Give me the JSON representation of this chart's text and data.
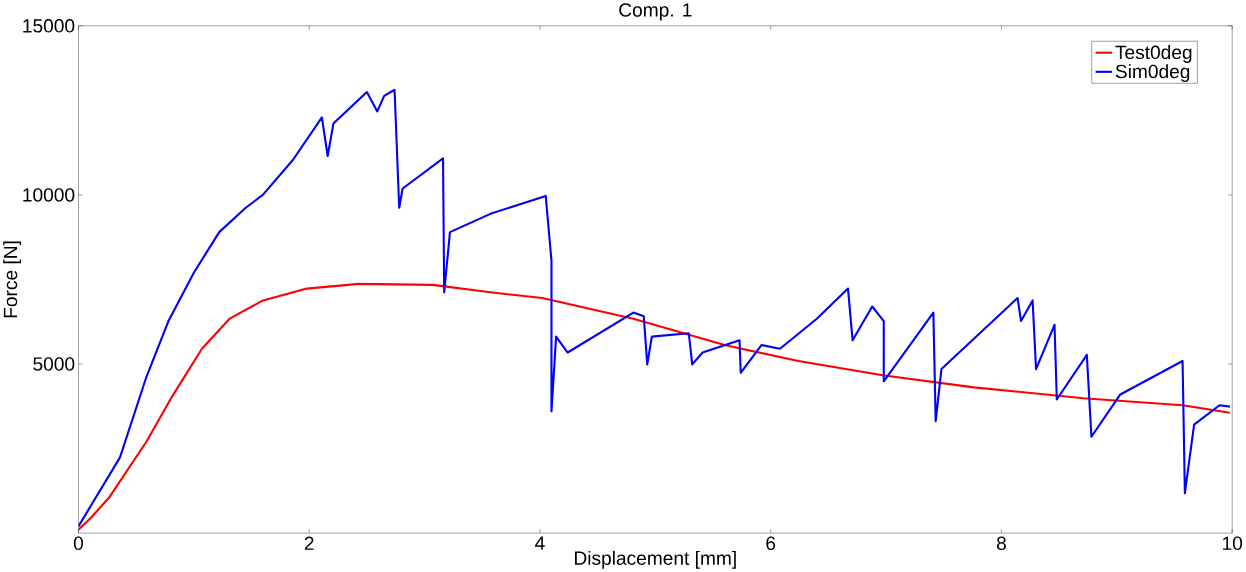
{
  "chart_data": {
    "type": "line",
    "title": "Comp. 1",
    "xlabel": "Displacement [mm]",
    "ylabel": "Force [N]",
    "xlim": [
      0,
      10
    ],
    "ylim": [
      0,
      15000
    ],
    "xticks": [
      0,
      2,
      4,
      6,
      8,
      10
    ],
    "yticks": [
      5000,
      10000,
      15000
    ],
    "legend": "top right",
    "grid": false,
    "marker": "none",
    "line_style": "solid",
    "series": [
      {
        "name": "Test0deg",
        "color": "#ff0000",
        "x": [
          0,
          0.11,
          0.27,
          0.59,
          0.81,
          1.07,
          1.31,
          1.6,
          1.98,
          2.43,
          3.07,
          3.57,
          4.02,
          4.81,
          5.6,
          6.24,
          6.97,
          7.76,
          8.71,
          9.57,
          9.98
        ],
        "values": [
          100,
          460,
          1070,
          2710,
          4030,
          5450,
          6340,
          6880,
          7230,
          7370,
          7340,
          7120,
          6950,
          6340,
          5560,
          5090,
          4670,
          4310,
          3990,
          3780,
          3560
        ]
      },
      {
        "name": "Sim0deg",
        "color": "#0000ff",
        "x": [
          0,
          0.36,
          0.59,
          0.78,
          1.0,
          1.22,
          1.45,
          1.6,
          1.86,
          2.11,
          2.16,
          2.21,
          2.5,
          2.59,
          2.65,
          2.74,
          2.78,
          2.81,
          3.16,
          3.17,
          3.22,
          3.57,
          4.05,
          4.1,
          4.1,
          4.14,
          4.24,
          4.81,
          4.9,
          4.93,
          4.97,
          5.29,
          5.32,
          5.41,
          5.73,
          5.74,
          5.92,
          6.08,
          6.4,
          6.67,
          6.71,
          6.88,
          6.98,
          6.98,
          7.41,
          7.43,
          7.48,
          8.14,
          8.17,
          8.27,
          8.3,
          8.46,
          8.48,
          8.74,
          8.78,
          9.03,
          9.57,
          9.59,
          9.67,
          9.89,
          9.98
        ],
        "values": [
          200,
          2240,
          4630,
          6270,
          7700,
          8900,
          9620,
          10010,
          11040,
          12290,
          11150,
          12110,
          13040,
          12470,
          12930,
          13110,
          9620,
          10190,
          11080,
          7120,
          8900,
          9440,
          9970,
          8050,
          3600,
          5810,
          5340,
          6520,
          6410,
          4990,
          5810,
          5910,
          4990,
          5340,
          5700,
          4740,
          5560,
          5450,
          6340,
          7230,
          5700,
          6700,
          6270,
          4490,
          6520,
          3310,
          4850,
          6950,
          6270,
          6880,
          4850,
          6160,
          3950,
          5270,
          2850,
          4100,
          5090,
          1180,
          3210,
          3780,
          3740
        ]
      }
    ]
  }
}
